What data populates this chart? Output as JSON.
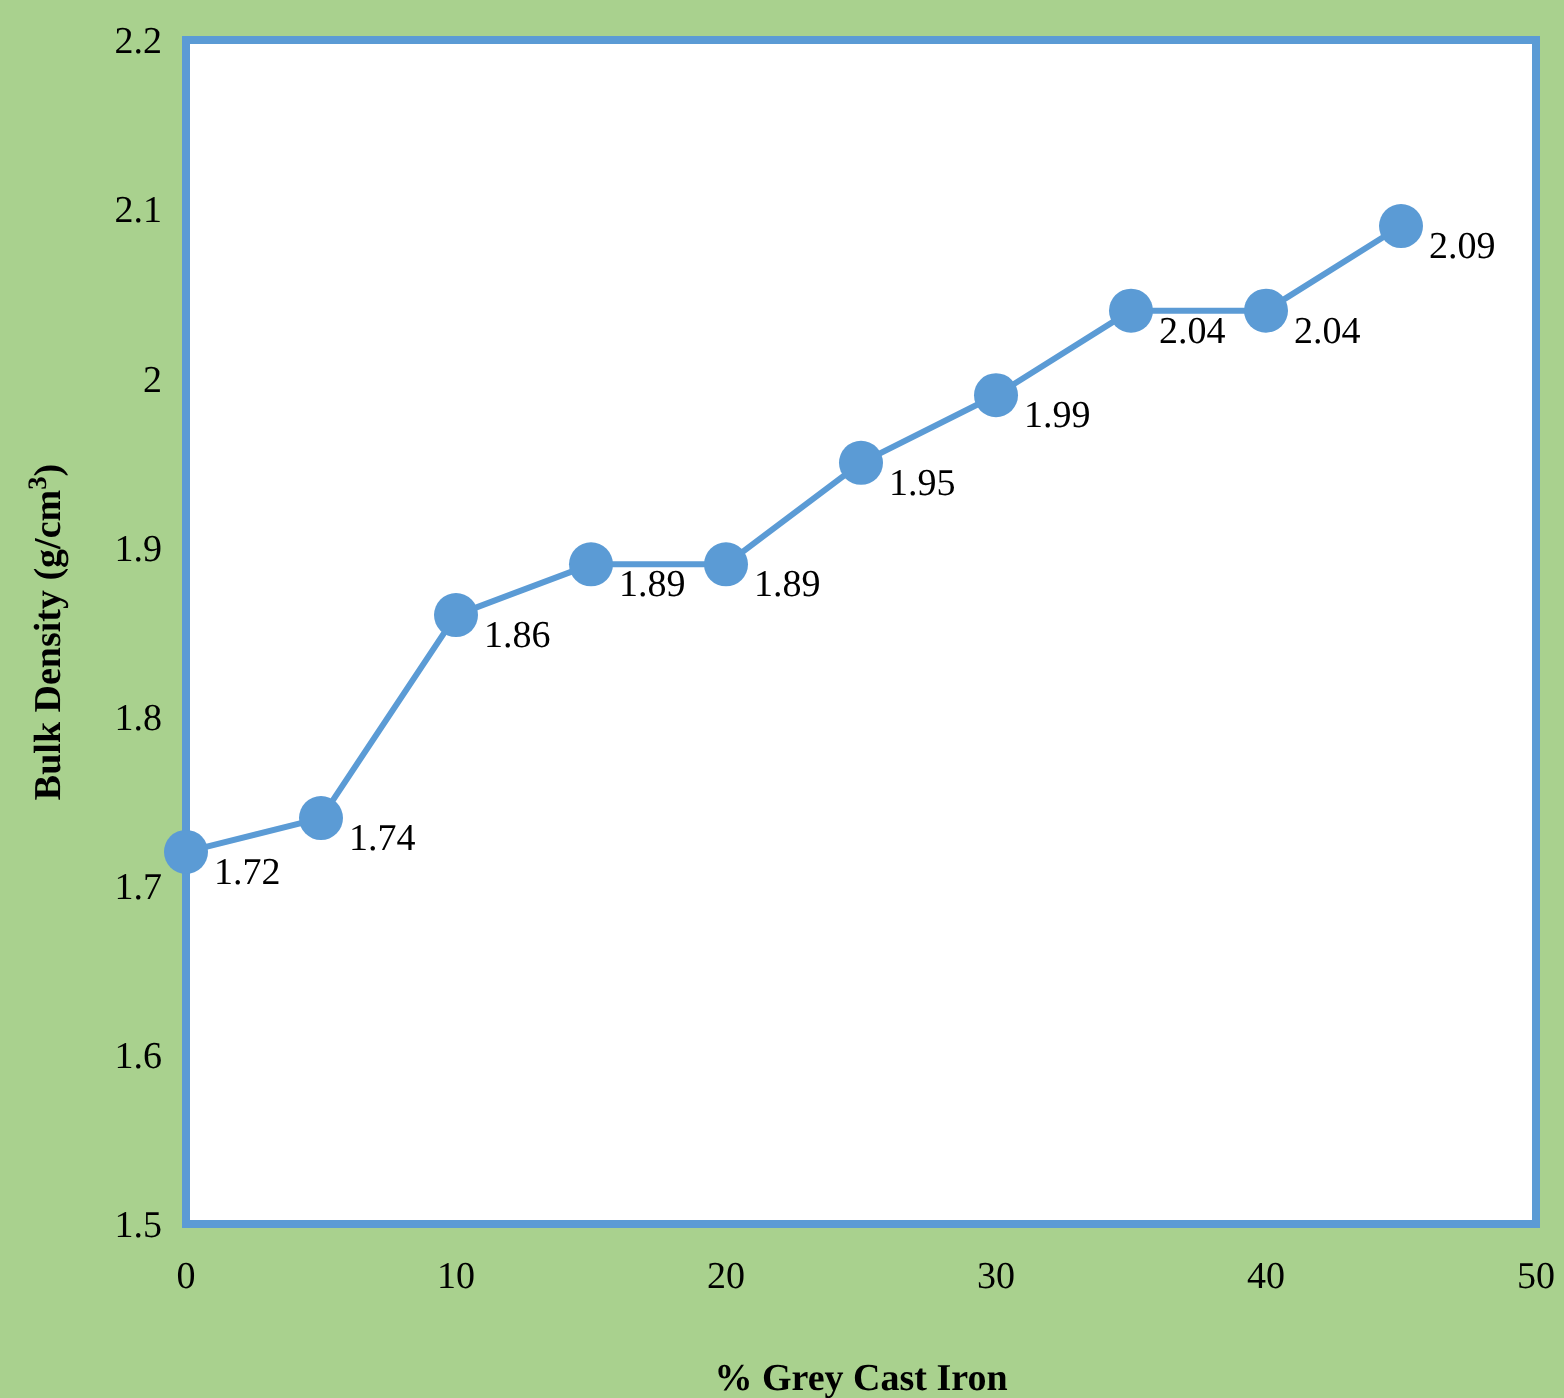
{
  "chart_data": {
    "type": "line",
    "xlabel": "% Grey Cast Iron",
    "ylabel": "Bulk Density (g/cm$^{3}$)",
    "x": [
      0,
      5,
      10,
      15,
      20,
      25,
      30,
      35,
      40,
      45
    ],
    "series": [
      {
        "color": "#5b9bd5",
        "values": [
          1.72,
          1.74,
          1.86,
          1.89,
          1.89,
          1.95,
          1.99,
          2.04,
          2.04,
          2.09
        ]
      }
    ],
    "xlim": [
      0,
      50
    ],
    "xticks": [
      0,
      10,
      20,
      30,
      40,
      50
    ],
    "ylim": [
      1.5,
      2.2
    ],
    "yticks": [
      1.5,
      1.6,
      1.7,
      1.8,
      1.9,
      2,
      2.1,
      2.2
    ],
    "data_labels": true,
    "marker": "circle",
    "line_style": "solid"
  }
}
